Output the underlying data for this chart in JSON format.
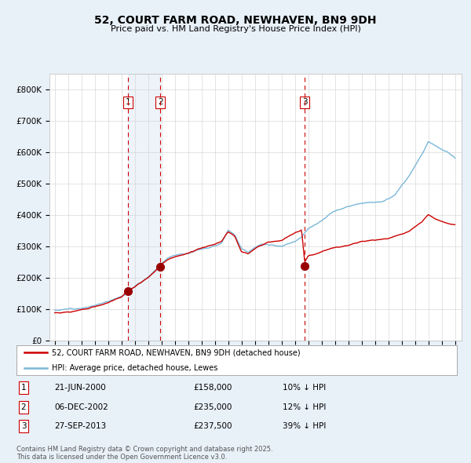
{
  "title": "52, COURT FARM ROAD, NEWHAVEN, BN9 9DH",
  "subtitle": "Price paid vs. HM Land Registry's House Price Index (HPI)",
  "legend_line1": "52, COURT FARM ROAD, NEWHAVEN, BN9 9DH (detached house)",
  "legend_line2": "HPI: Average price, detached house, Lewes",
  "footer": "Contains HM Land Registry data © Crown copyright and database right 2025.\nThis data is licensed under the Open Government Licence v3.0.",
  "transactions": [
    {
      "num": 1,
      "date": "21-JUN-2000",
      "price": 158000,
      "pct": "10%",
      "dir": "↓",
      "x_year": 2000.47
    },
    {
      "num": 2,
      "date": "06-DEC-2002",
      "price": 235000,
      "pct": "12%",
      "dir": "↓",
      "x_year": 2002.92
    },
    {
      "num": 3,
      "date": "27-SEP-2013",
      "price": 237500,
      "pct": "39%",
      "dir": "↓",
      "x_year": 2013.74
    }
  ],
  "hpi_color": "#7ab8d9",
  "price_color": "#cc0000",
  "bg_color": "#e8f0f8",
  "plot_bg": "#ffffff",
  "highlight_color": "#ccdff0",
  "dashed_color": "#cc0000",
  "ylim": [
    0,
    850000
  ],
  "xlim_start": 1994.6,
  "xlim_end": 2025.5,
  "title_fontsize": 10,
  "subtitle_fontsize": 8
}
